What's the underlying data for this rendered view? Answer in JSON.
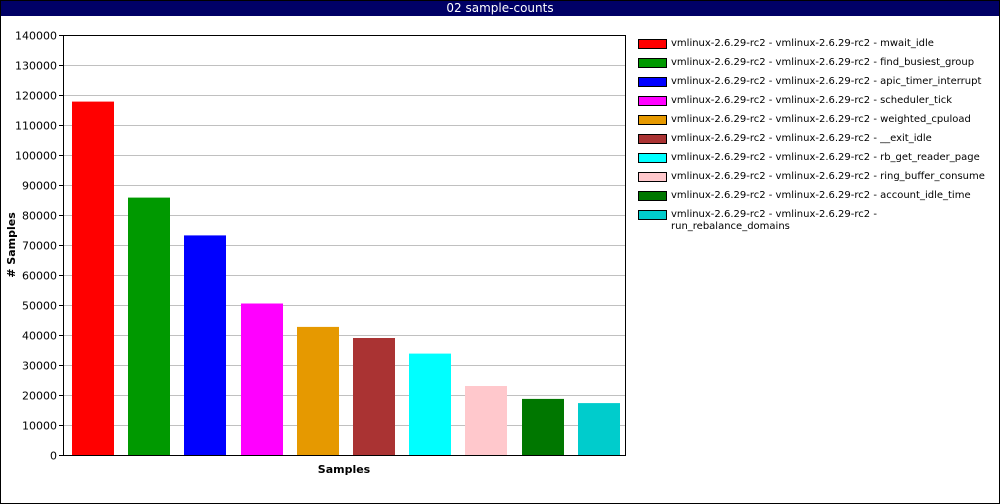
{
  "window": {
    "title": "02 sample-counts"
  },
  "chart_data": {
    "type": "bar",
    "title": "",
    "xlabel": "Samples",
    "ylabel": "# Samples",
    "ylim": [
      0,
      140000
    ],
    "yticks": [
      0,
      10000,
      20000,
      30000,
      40000,
      50000,
      60000,
      70000,
      80000,
      90000,
      100000,
      110000,
      120000,
      130000,
      140000
    ],
    "grid": true,
    "legend_position": "right",
    "series": [
      {
        "name": "vmlinux-2.6.29-rc2 - vmlinux-2.6.29-rc2 - mwait_idle",
        "value": 117800,
        "color": "#ff0000"
      },
      {
        "name": "vmlinux-2.6.29-rc2 - vmlinux-2.6.29-rc2 - find_busiest_group",
        "value": 85800,
        "color": "#009900"
      },
      {
        "name": "vmlinux-2.6.29-rc2 - vmlinux-2.6.29-rc2 - apic_timer_interrupt",
        "value": 73200,
        "color": "#0000ff"
      },
      {
        "name": "vmlinux-2.6.29-rc2 - vmlinux-2.6.29-rc2 - scheduler_tick",
        "value": 50500,
        "color": "#ff00ff"
      },
      {
        "name": "vmlinux-2.6.29-rc2 - vmlinux-2.6.29-rc2 - weighted_cpuload",
        "value": 42700,
        "color": "#e69900"
      },
      {
        "name": "vmlinux-2.6.29-rc2 - vmlinux-2.6.29-rc2 - __exit_idle",
        "value": 39000,
        "color": "#aa3333"
      },
      {
        "name": "vmlinux-2.6.29-rc2 - vmlinux-2.6.29-rc2 - rb_get_reader_page",
        "value": 33800,
        "color": "#00ffff"
      },
      {
        "name": "vmlinux-2.6.29-rc2 - vmlinux-2.6.29-rc2 - ring_buffer_consume",
        "value": 23000,
        "color": "#ffc8cc"
      },
      {
        "name": "vmlinux-2.6.29-rc2 - vmlinux-2.6.29-rc2 - account_idle_time",
        "value": 18700,
        "color": "#007700"
      },
      {
        "name": "vmlinux-2.6.29-rc2 - vmlinux-2.6.29-rc2 - run_rebalance_domains",
        "value": 17300,
        "color": "#00cccc"
      }
    ]
  }
}
